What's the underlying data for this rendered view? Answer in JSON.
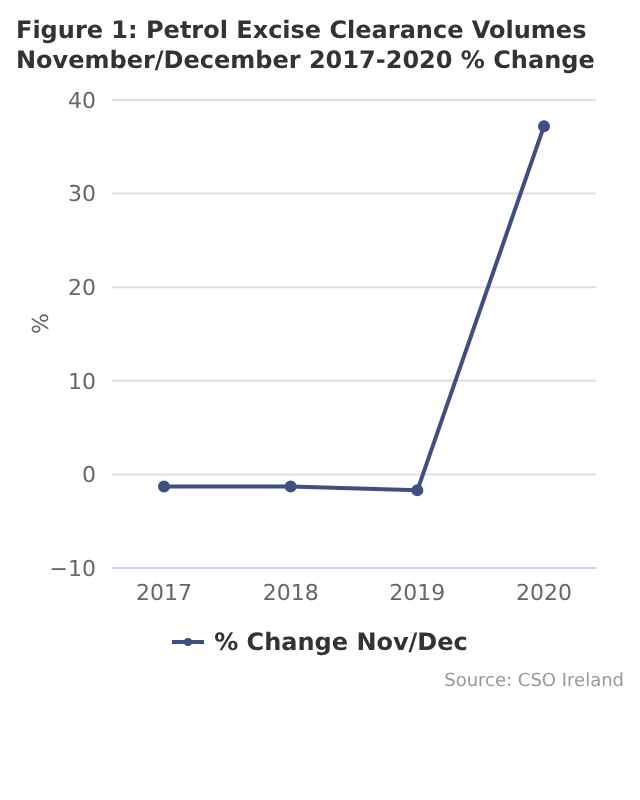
{
  "chart_data": {
    "type": "line",
    "title": "Figure 1: Petrol Excise Clearance Volumes November/December 2017-2020 % Change",
    "categories": [
      "2017",
      "2018",
      "2019",
      "2020"
    ],
    "series": [
      {
        "name": "% Change Nov/Dec",
        "color": "#3d5080",
        "values": [
          -1.3,
          -1.3,
          -1.7,
          37.2
        ]
      }
    ],
    "ylabel": "%",
    "ylim": [
      -10,
      40
    ],
    "yticks": [
      {
        "value": -10,
        "label": "−10"
      },
      0,
      10,
      20,
      30,
      40
    ],
    "grid": "y",
    "legend": "bottom",
    "marker": "circle",
    "line_style": "solid",
    "annotations": [
      "Source: CSO Ireland"
    ]
  }
}
